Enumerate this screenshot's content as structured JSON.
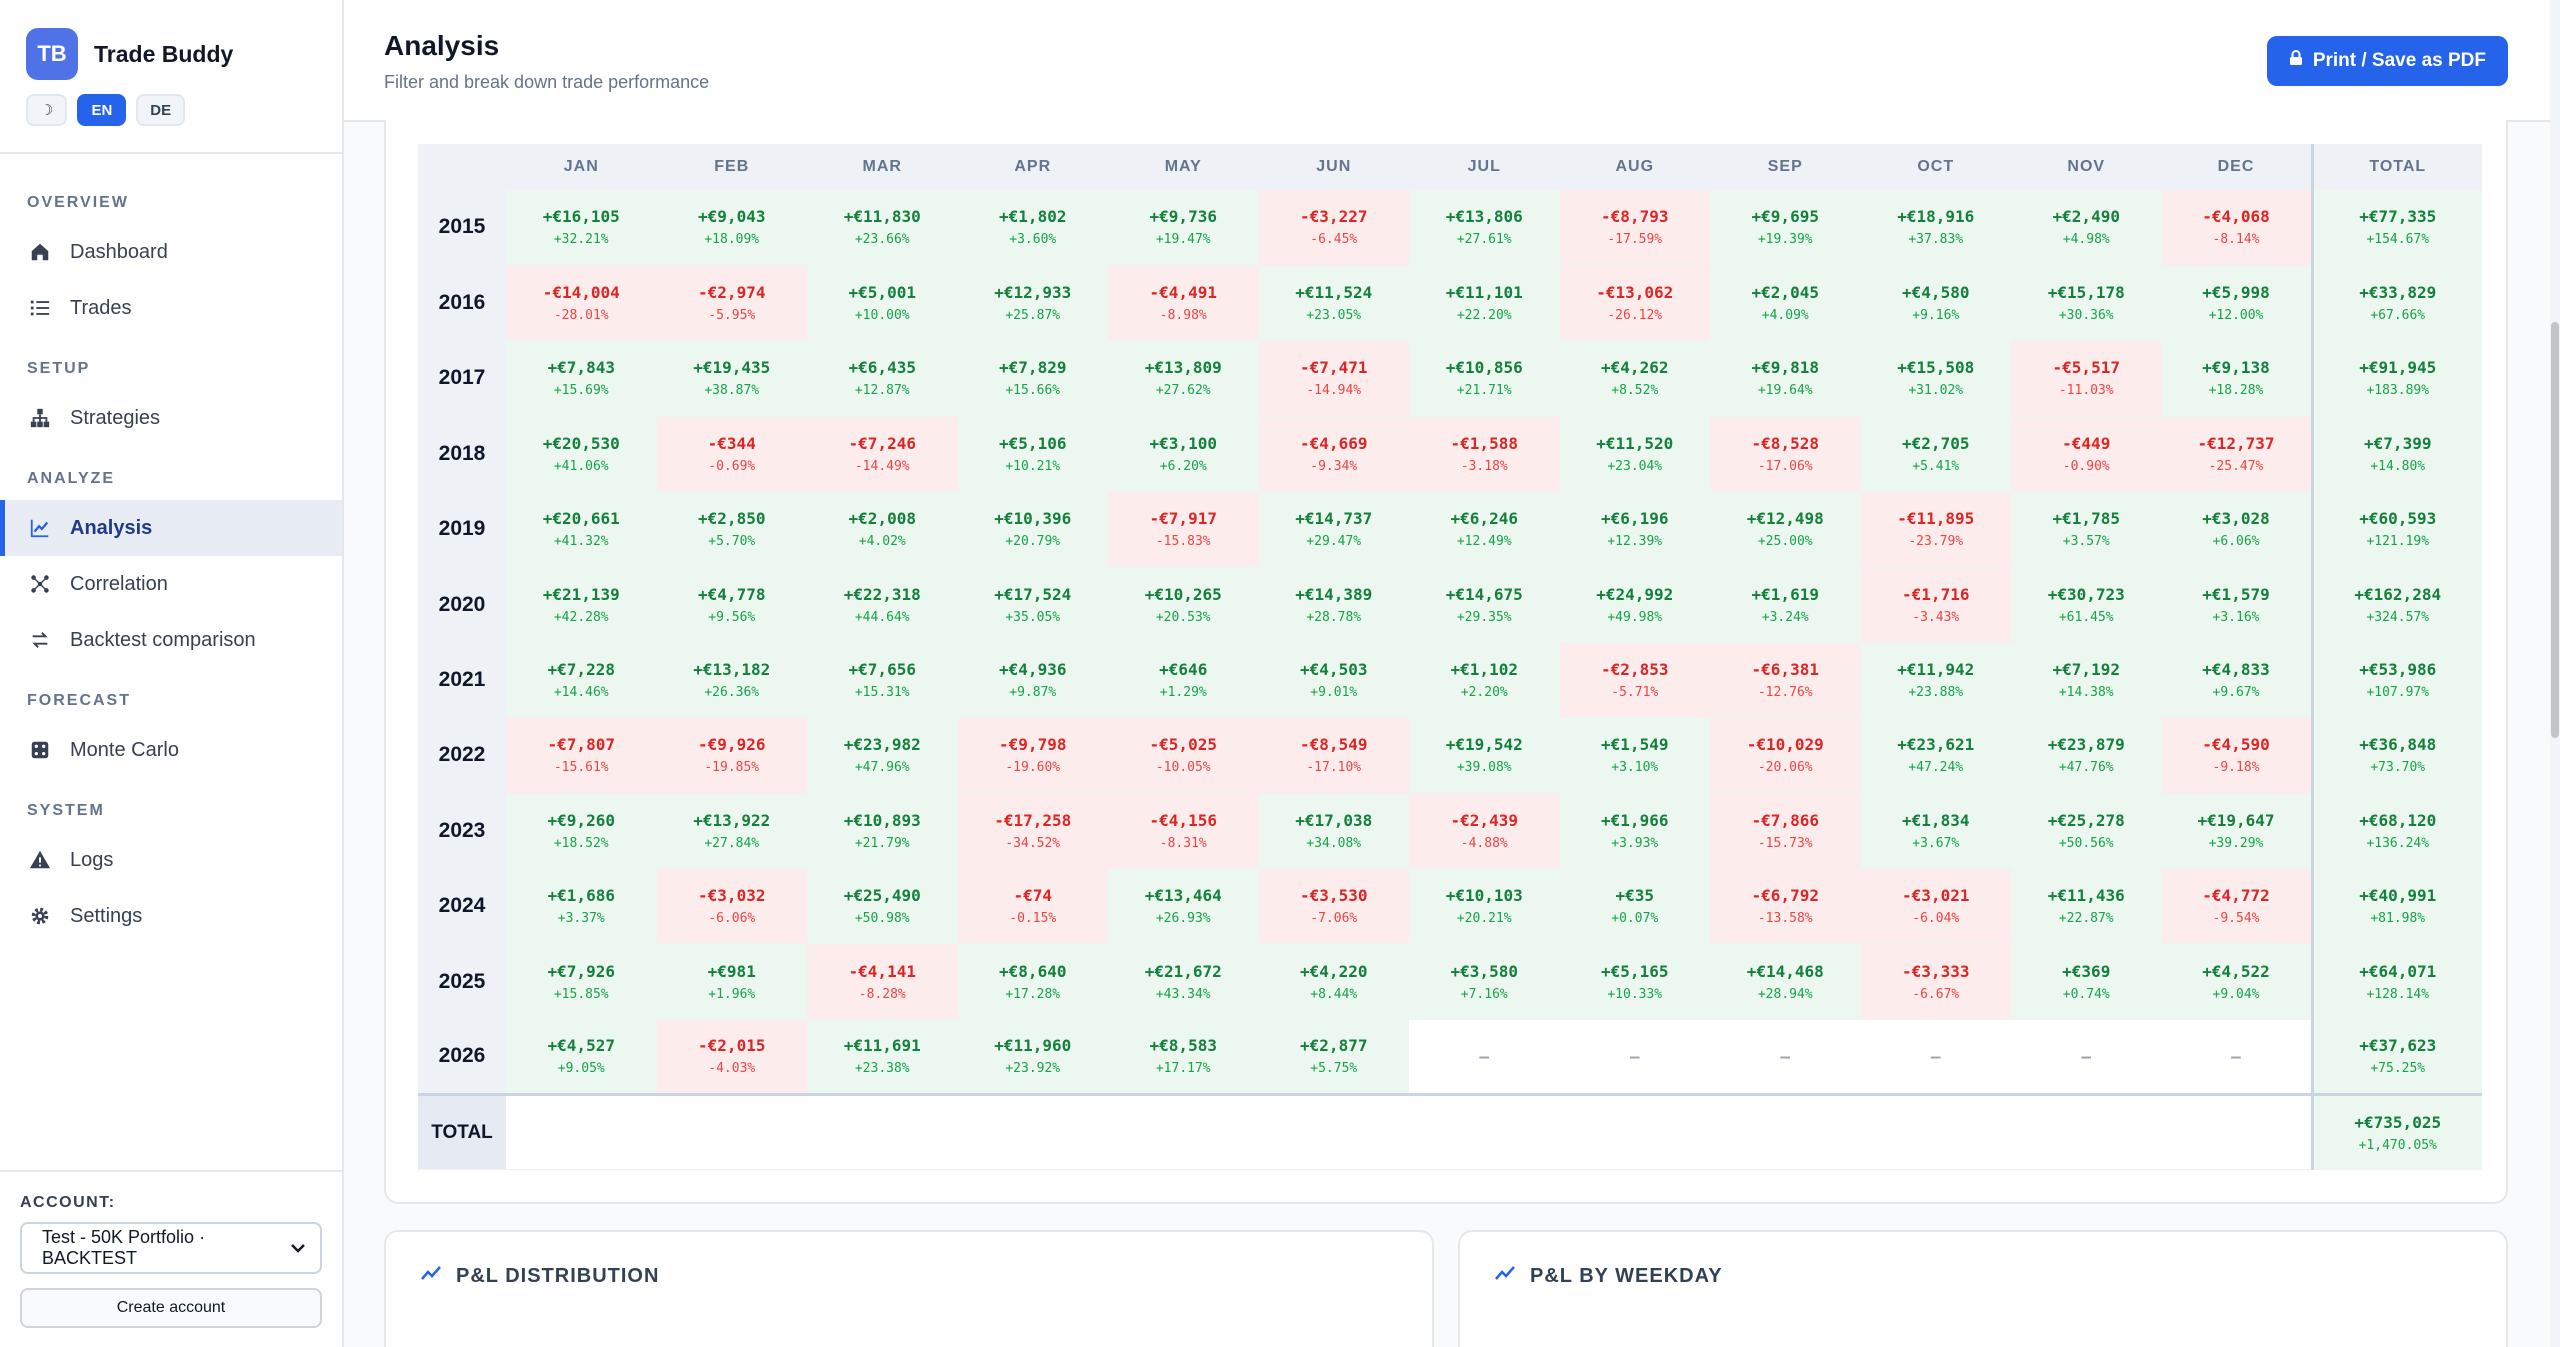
{
  "brand": {
    "logo": "TB",
    "name": "Trade Buddy"
  },
  "lang": {
    "theme": "☽",
    "en": "EN",
    "de": "DE"
  },
  "nav": {
    "sections": [
      {
        "title": "OVERVIEW",
        "items": [
          {
            "label": "Dashboard",
            "icon": "home-icon"
          },
          {
            "label": "Trades",
            "icon": "list-icon"
          }
        ]
      },
      {
        "title": "SETUP",
        "items": [
          {
            "label": "Strategies",
            "icon": "hierarchy-icon"
          }
        ]
      },
      {
        "title": "ANALYZE",
        "items": [
          {
            "label": "Analysis",
            "icon": "chart-line-icon",
            "active": true
          },
          {
            "label": "Correlation",
            "icon": "scatter-icon"
          },
          {
            "label": "Backtest comparison",
            "icon": "swap-icon"
          }
        ]
      },
      {
        "title": "FORECAST",
        "items": [
          {
            "label": "Monte Carlo",
            "icon": "dice-icon"
          }
        ]
      },
      {
        "title": "SYSTEM",
        "items": [
          {
            "label": "Logs",
            "icon": "warning-icon"
          },
          {
            "label": "Settings",
            "icon": "gear-icon"
          }
        ]
      }
    ]
  },
  "account": {
    "label": "ACCOUNT:",
    "selected": "Test - 50K Portfolio · BACKTEST",
    "create": "Create account"
  },
  "header": {
    "title": "Analysis",
    "subtitle": "Filter and break down trade performance",
    "print": "Print / Save as PDF"
  },
  "table": {
    "columns": [
      "JAN",
      "FEB",
      "MAR",
      "APR",
      "MAY",
      "JUN",
      "JUL",
      "AUG",
      "SEP",
      "OCT",
      "NOV",
      "DEC",
      "TOTAL"
    ],
    "rows": [
      {
        "year": "2015",
        "cells": [
          [
            "+€16,105",
            "+32.21%"
          ],
          [
            "+€9,043",
            "+18.09%"
          ],
          [
            "+€11,830",
            "+23.66%"
          ],
          [
            "+€1,802",
            "+3.60%"
          ],
          [
            "+€9,736",
            "+19.47%"
          ],
          [
            "-€3,227",
            "-6.45%"
          ],
          [
            "+€13,806",
            "+27.61%"
          ],
          [
            "-€8,793",
            "-17.59%"
          ],
          [
            "+€9,695",
            "+19.39%"
          ],
          [
            "+€18,916",
            "+37.83%"
          ],
          [
            "+€2,490",
            "+4.98%"
          ],
          [
            "-€4,068",
            "-8.14%"
          ]
        ],
        "total": [
          "+€77,335",
          "+154.67%"
        ]
      },
      {
        "year": "2016",
        "cells": [
          [
            "-€14,004",
            "-28.01%"
          ],
          [
            "-€2,974",
            "-5.95%"
          ],
          [
            "+€5,001",
            "+10.00%"
          ],
          [
            "+€12,933",
            "+25.87%"
          ],
          [
            "-€4,491",
            "-8.98%"
          ],
          [
            "+€11,524",
            "+23.05%"
          ],
          [
            "+€11,101",
            "+22.20%"
          ],
          [
            "-€13,062",
            "-26.12%"
          ],
          [
            "+€2,045",
            "+4.09%"
          ],
          [
            "+€4,580",
            "+9.16%"
          ],
          [
            "+€15,178",
            "+30.36%"
          ],
          [
            "+€5,998",
            "+12.00%"
          ]
        ],
        "total": [
          "+€33,829",
          "+67.66%"
        ]
      },
      {
        "year": "2017",
        "cells": [
          [
            "+€7,843",
            "+15.69%"
          ],
          [
            "+€19,435",
            "+38.87%"
          ],
          [
            "+€6,435",
            "+12.87%"
          ],
          [
            "+€7,829",
            "+15.66%"
          ],
          [
            "+€13,809",
            "+27.62%"
          ],
          [
            "-€7,471",
            "-14.94%"
          ],
          [
            "+€10,856",
            "+21.71%"
          ],
          [
            "+€4,262",
            "+8.52%"
          ],
          [
            "+€9,818",
            "+19.64%"
          ],
          [
            "+€15,508",
            "+31.02%"
          ],
          [
            "-€5,517",
            "-11.03%"
          ],
          [
            "+€9,138",
            "+18.28%"
          ]
        ],
        "total": [
          "+€91,945",
          "+183.89%"
        ]
      },
      {
        "year": "2018",
        "cells": [
          [
            "+€20,530",
            "+41.06%"
          ],
          [
            "-€344",
            "-0.69%"
          ],
          [
            "-€7,246",
            "-14.49%"
          ],
          [
            "+€5,106",
            "+10.21%"
          ],
          [
            "+€3,100",
            "+6.20%"
          ],
          [
            "-€4,669",
            "-9.34%"
          ],
          [
            "-€1,588",
            "-3.18%"
          ],
          [
            "+€11,520",
            "+23.04%"
          ],
          [
            "-€8,528",
            "-17.06%"
          ],
          [
            "+€2,705",
            "+5.41%"
          ],
          [
            "-€449",
            "-0.90%"
          ],
          [
            "-€12,737",
            "-25.47%"
          ]
        ],
        "total": [
          "+€7,399",
          "+14.80%"
        ]
      },
      {
        "year": "2019",
        "cells": [
          [
            "+€20,661",
            "+41.32%"
          ],
          [
            "+€2,850",
            "+5.70%"
          ],
          [
            "+€2,008",
            "+4.02%"
          ],
          [
            "+€10,396",
            "+20.79%"
          ],
          [
            "-€7,917",
            "-15.83%"
          ],
          [
            "+€14,737",
            "+29.47%"
          ],
          [
            "+€6,246",
            "+12.49%"
          ],
          [
            "+€6,196",
            "+12.39%"
          ],
          [
            "+€12,498",
            "+25.00%"
          ],
          [
            "-€11,895",
            "-23.79%"
          ],
          [
            "+€1,785",
            "+3.57%"
          ],
          [
            "+€3,028",
            "+6.06%"
          ]
        ],
        "total": [
          "+€60,593",
          "+121.19%"
        ]
      },
      {
        "year": "2020",
        "cells": [
          [
            "+€21,139",
            "+42.28%"
          ],
          [
            "+€4,778",
            "+9.56%"
          ],
          [
            "+€22,318",
            "+44.64%"
          ],
          [
            "+€17,524",
            "+35.05%"
          ],
          [
            "+€10,265",
            "+20.53%"
          ],
          [
            "+€14,389",
            "+28.78%"
          ],
          [
            "+€14,675",
            "+29.35%"
          ],
          [
            "+€24,992",
            "+49.98%"
          ],
          [
            "+€1,619",
            "+3.24%"
          ],
          [
            "-€1,716",
            "-3.43%"
          ],
          [
            "+€30,723",
            "+61.45%"
          ],
          [
            "+€1,579",
            "+3.16%"
          ]
        ],
        "total": [
          "+€162,284",
          "+324.57%"
        ]
      },
      {
        "year": "2021",
        "cells": [
          [
            "+€7,228",
            "+14.46%"
          ],
          [
            "+€13,182",
            "+26.36%"
          ],
          [
            "+€7,656",
            "+15.31%"
          ],
          [
            "+€4,936",
            "+9.87%"
          ],
          [
            "+€646",
            "+1.29%"
          ],
          [
            "+€4,503",
            "+9.01%"
          ],
          [
            "+€1,102",
            "+2.20%"
          ],
          [
            "-€2,853",
            "-5.71%"
          ],
          [
            "-€6,381",
            "-12.76%"
          ],
          [
            "+€11,942",
            "+23.88%"
          ],
          [
            "+€7,192",
            "+14.38%"
          ],
          [
            "+€4,833",
            "+9.67%"
          ]
        ],
        "total": [
          "+€53,986",
          "+107.97%"
        ]
      },
      {
        "year": "2022",
        "cells": [
          [
            "-€7,807",
            "-15.61%"
          ],
          [
            "-€9,926",
            "-19.85%"
          ],
          [
            "+€23,982",
            "+47.96%"
          ],
          [
            "-€9,798",
            "-19.60%"
          ],
          [
            "-€5,025",
            "-10.05%"
          ],
          [
            "-€8,549",
            "-17.10%"
          ],
          [
            "+€19,542",
            "+39.08%"
          ],
          [
            "+€1,549",
            "+3.10%"
          ],
          [
            "-€10,029",
            "-20.06%"
          ],
          [
            "+€23,621",
            "+47.24%"
          ],
          [
            "+€23,879",
            "+47.76%"
          ],
          [
            "-€4,590",
            "-9.18%"
          ]
        ],
        "total": [
          "+€36,848",
          "+73.70%"
        ]
      },
      {
        "year": "2023",
        "cells": [
          [
            "+€9,260",
            "+18.52%"
          ],
          [
            "+€13,922",
            "+27.84%"
          ],
          [
            "+€10,893",
            "+21.79%"
          ],
          [
            "-€17,258",
            "-34.52%"
          ],
          [
            "-€4,156",
            "-8.31%"
          ],
          [
            "+€17,038",
            "+34.08%"
          ],
          [
            "-€2,439",
            "-4.88%"
          ],
          [
            "+€1,966",
            "+3.93%"
          ],
          [
            "-€7,866",
            "-15.73%"
          ],
          [
            "+€1,834",
            "+3.67%"
          ],
          [
            "+€25,278",
            "+50.56%"
          ],
          [
            "+€19,647",
            "+39.29%"
          ]
        ],
        "total": [
          "+€68,120",
          "+136.24%"
        ]
      },
      {
        "year": "2024",
        "cells": [
          [
            "+€1,686",
            "+3.37%"
          ],
          [
            "-€3,032",
            "-6.06%"
          ],
          [
            "+€25,490",
            "+50.98%"
          ],
          [
            "-€74",
            "-0.15%"
          ],
          [
            "+€13,464",
            "+26.93%"
          ],
          [
            "-€3,530",
            "-7.06%"
          ],
          [
            "+€10,103",
            "+20.21%"
          ],
          [
            "+€35",
            "+0.07%"
          ],
          [
            "-€6,792",
            "-13.58%"
          ],
          [
            "-€3,021",
            "-6.04%"
          ],
          [
            "+€11,436",
            "+22.87%"
          ],
          [
            "-€4,772",
            "-9.54%"
          ]
        ],
        "total": [
          "+€40,991",
          "+81.98%"
        ]
      },
      {
        "year": "2025",
        "cells": [
          [
            "+€7,926",
            "+15.85%"
          ],
          [
            "+€981",
            "+1.96%"
          ],
          [
            "-€4,141",
            "-8.28%"
          ],
          [
            "+€8,640",
            "+17.28%"
          ],
          [
            "+€21,672",
            "+43.34%"
          ],
          [
            "+€4,220",
            "+8.44%"
          ],
          [
            "+€3,580",
            "+7.16%"
          ],
          [
            "+€5,165",
            "+10.33%"
          ],
          [
            "+€14,468",
            "+28.94%"
          ],
          [
            "-€3,333",
            "-6.67%"
          ],
          [
            "+€369",
            "+0.74%"
          ],
          [
            "+€4,522",
            "+9.04%"
          ]
        ],
        "total": [
          "+€64,071",
          "+128.14%"
        ]
      },
      {
        "year": "2026",
        "cells": [
          [
            "+€4,527",
            "+9.05%"
          ],
          [
            "-€2,015",
            "-4.03%"
          ],
          [
            "+€11,691",
            "+23.38%"
          ],
          [
            "+€11,960",
            "+23.92%"
          ],
          [
            "+€8,583",
            "+17.17%"
          ],
          [
            "+€2,877",
            "+5.75%"
          ],
          [
            "–",
            ""
          ],
          [
            "–",
            ""
          ],
          [
            "–",
            ""
          ],
          [
            "–",
            ""
          ],
          [
            "–",
            ""
          ],
          [
            "–",
            ""
          ]
        ],
        "total": [
          "+€37,623",
          "+75.25%"
        ]
      }
    ],
    "total_row": {
      "label": "TOTAL",
      "amount": "+€735,025",
      "pct": "+1,470.05%"
    }
  },
  "panels": {
    "distribution": "P&L DISTRIBUTION",
    "weekday": "P&L BY WEEKDAY"
  }
}
